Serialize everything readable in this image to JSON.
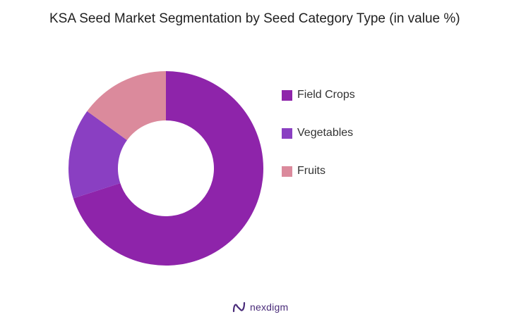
{
  "title": "KSA Seed Market Segmentation by Seed Category Type (in value %)",
  "chart_data": {
    "type": "pie",
    "variant": "donut",
    "title": "KSA Seed Market Segmentation by Seed Category Type (in value %)",
    "categories": [
      "Field Crops",
      "Vegetables",
      "Fruits"
    ],
    "values": [
      70,
      15,
      15
    ],
    "colors": [
      "#8e24aa",
      "#8a3fc2",
      "#db8a9c"
    ],
    "legend_position": "right"
  },
  "brand": {
    "name": "nexdigm",
    "color": "#4a2c7a"
  }
}
